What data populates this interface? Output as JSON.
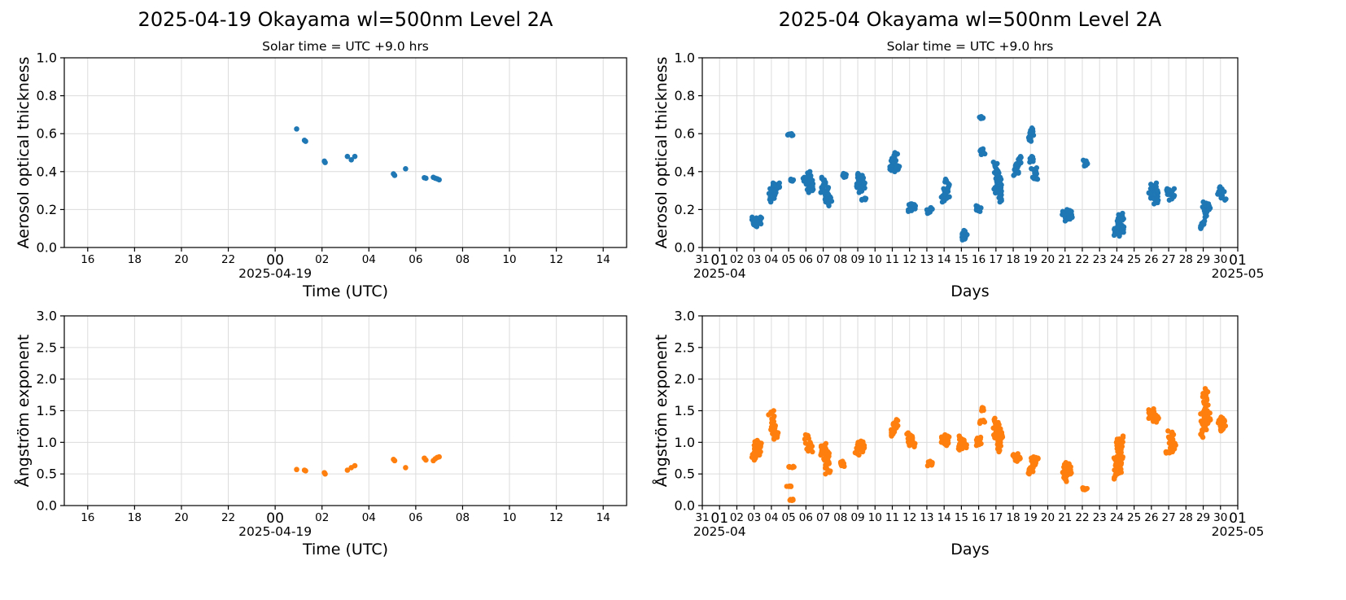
{
  "figure": {
    "colors": {
      "aod": "#1f77b4",
      "angstrom": "#ff7f0e",
      "grid": "#dcdcdc"
    }
  },
  "chart_data": [
    {
      "id": "daily_aod",
      "type": "scatter",
      "title": "2025-04-19  Okayama  wl=500nm  Level 2A",
      "subtitle": "Solar time = UTC +9.0 hrs",
      "xlabel": "Time (UTC)",
      "ylabel": "Aerosol optical thickness",
      "xaxis": {
        "kind": "time",
        "range": [
          "2025-04-18 15:00",
          "2025-04-19 15:00"
        ]
      },
      "ylim": [
        0,
        1.0
      ],
      "yticks": [
        "0.0",
        "0.2",
        "0.4",
        "0.6",
        "0.8",
        "1.0"
      ],
      "xtick_labels": [
        "16",
        "18",
        "20",
        "22",
        "00",
        "02",
        "04",
        "06",
        "08",
        "10",
        "12",
        "14"
      ],
      "xtick_secondary": "2025-04-19",
      "grid": true,
      "color": "#1f77b4",
      "points": [
        [
          "2025-04-19 00:55",
          0.625
        ],
        [
          "2025-04-19 01:15",
          0.565
        ],
        [
          "2025-04-19 01:18",
          0.56
        ],
        [
          "2025-04-19 02:06",
          0.455
        ],
        [
          "2025-04-19 02:08",
          0.448
        ],
        [
          "2025-04-19 03:05",
          0.48
        ],
        [
          "2025-04-19 03:15",
          0.462
        ],
        [
          "2025-04-19 03:24",
          0.48
        ],
        [
          "2025-04-19 05:03",
          0.388
        ],
        [
          "2025-04-19 05:06",
          0.38
        ],
        [
          "2025-04-19 05:34",
          0.415
        ],
        [
          "2025-04-19 06:22",
          0.368
        ],
        [
          "2025-04-19 06:26",
          0.365
        ],
        [
          "2025-04-19 06:45",
          0.37
        ],
        [
          "2025-04-19 06:50",
          0.365
        ],
        [
          "2025-04-19 06:55",
          0.362
        ],
        [
          "2025-04-19 07:00",
          0.357
        ]
      ]
    },
    {
      "id": "monthly_aod",
      "type": "scatter",
      "title": "2025-04  Okayama  wl=500nm  Level 2A",
      "subtitle": "Solar time = UTC +9.0 hrs",
      "xlabel": "Days",
      "ylabel": "Aerosol optical thickness",
      "xaxis": {
        "kind": "time",
        "range": [
          "2025-03-31 00:00",
          "2025-05-01 00:00"
        ]
      },
      "ylim": [
        0,
        1.0
      ],
      "yticks": [
        "0.0",
        "0.2",
        "0.4",
        "0.6",
        "0.8",
        "1.0"
      ],
      "xtick_labels": [
        "31",
        "01",
        "02",
        "03",
        "04",
        "05",
        "06",
        "07",
        "08",
        "09",
        "10",
        "11",
        "12",
        "13",
        "14",
        "15",
        "16",
        "17",
        "18",
        "19",
        "20",
        "21",
        "22",
        "23",
        "24",
        "25",
        "26",
        "27",
        "28",
        "29",
        "30",
        "01"
      ],
      "xtick_secondary": [
        "2025-04",
        "2025-05"
      ],
      "grid": true,
      "color": "#1f77b4",
      "clusters": [
        [
          "2025-04-03 00:00",
          0.12,
          0.16
        ],
        [
          "2025-04-03 03:00",
          0.11,
          0.15
        ],
        [
          "2025-04-03 07:00",
          0.12,
          0.16
        ],
        [
          "2025-04-04 00:00",
          0.24,
          0.31
        ],
        [
          "2025-04-04 04:00",
          0.27,
          0.34
        ],
        [
          "2025-04-04 08:00",
          0.31,
          0.34
        ],
        [
          "2025-04-05 02:00",
          0.59,
          0.6
        ],
        [
          "2025-04-05 05:00",
          0.35,
          0.36
        ],
        [
          "2025-04-06 00:00",
          0.35,
          0.37
        ],
        [
          "2025-04-06 04:00",
          0.29,
          0.4
        ],
        [
          "2025-04-06 07:00",
          0.3,
          0.36
        ],
        [
          "2025-04-07 00:00",
          0.29,
          0.37
        ],
        [
          "2025-04-07 04:00",
          0.24,
          0.33
        ],
        [
          "2025-04-07 08:00",
          0.22,
          0.28
        ],
        [
          "2025-04-08 04:00",
          0.37,
          0.39
        ],
        [
          "2025-04-09 00:00",
          0.31,
          0.38
        ],
        [
          "2025-04-09 03:00",
          0.29,
          0.39
        ],
        [
          "2025-04-09 06:00",
          0.3,
          0.38
        ],
        [
          "2025-04-09 08:00",
          0.25,
          0.26
        ],
        [
          "2025-04-11 00:00",
          0.4,
          0.47
        ],
        [
          "2025-04-11 04:00",
          0.41,
          0.5
        ],
        [
          "2025-04-11 06:00",
          0.41,
          0.43
        ],
        [
          "2025-04-12 02:00",
          0.19,
          0.23
        ],
        [
          "2025-04-12 05:00",
          0.2,
          0.23
        ],
        [
          "2025-04-13 04:00",
          0.18,
          0.21
        ],
        [
          "2025-04-14 00:00",
          0.24,
          0.31
        ],
        [
          "2025-04-14 04:00",
          0.26,
          0.36
        ],
        [
          "2025-04-15 02:00",
          0.04,
          0.08
        ],
        [
          "2025-04-15 04:00",
          0.05,
          0.09
        ],
        [
          "2025-04-16 00:00",
          0.19,
          0.22
        ],
        [
          "2025-04-16 04:00",
          0.68,
          0.69
        ],
        [
          "2025-04-16 06:00",
          0.49,
          0.52
        ],
        [
          "2025-04-17 00:00",
          0.3,
          0.45
        ],
        [
          "2025-04-17 02:00",
          0.28,
          0.4
        ],
        [
          "2025-04-17 04:00",
          0.29,
          0.38
        ],
        [
          "2025-04-17 06:00",
          0.24,
          0.36
        ],
        [
          "2025-04-18 04:00",
          0.38,
          0.44
        ],
        [
          "2025-04-18 07:00",
          0.43,
          0.48
        ],
        [
          "2025-04-19 01:00",
          0.56,
          0.63
        ],
        [
          "2025-04-19 03:00",
          0.45,
          0.48
        ],
        [
          "2025-04-19 05:00",
          0.38,
          0.42
        ],
        [
          "2025-04-19 07:00",
          0.36,
          0.37
        ],
        [
          "2025-04-22 04:00",
          0.43,
          0.46
        ],
        [
          "2025-04-21 00:00",
          0.14,
          0.19
        ],
        [
          "2025-04-21 03:00",
          0.15,
          0.2
        ],
        [
          "2025-04-21 06:00",
          0.15,
          0.19
        ],
        [
          "2025-04-24 00:00",
          0.06,
          0.1
        ],
        [
          "2025-04-24 03:00",
          0.07,
          0.16
        ],
        [
          "2025-04-24 06:00",
          0.08,
          0.18
        ],
        [
          "2025-04-26 00:00",
          0.26,
          0.31
        ],
        [
          "2025-04-26 03:00",
          0.26,
          0.34
        ],
        [
          "2025-04-26 06:00",
          0.23,
          0.3
        ],
        [
          "2025-04-27 00:00",
          0.28,
          0.31
        ],
        [
          "2025-04-27 04:00",
          0.25,
          0.31
        ],
        [
          "2025-04-29 00:00",
          0.1,
          0.14
        ],
        [
          "2025-04-29 03:00",
          0.16,
          0.24
        ],
        [
          "2025-04-29 06:00",
          0.2,
          0.23
        ],
        [
          "2025-04-30 00:00",
          0.27,
          0.32
        ],
        [
          "2025-04-30 04:00",
          0.25,
          0.3
        ]
      ]
    },
    {
      "id": "daily_angstrom",
      "type": "scatter",
      "title": "",
      "subtitle": "",
      "xlabel": "Time (UTC)",
      "ylabel": "Ångström exponent",
      "xaxis": {
        "kind": "time",
        "range": [
          "2025-04-18 15:00",
          "2025-04-19 15:00"
        ]
      },
      "ylim": [
        0,
        3.0
      ],
      "yticks": [
        "0.0",
        "0.5",
        "1.0",
        "1.5",
        "2.0",
        "2.5",
        "3.0"
      ],
      "xtick_labels": [
        "16",
        "18",
        "20",
        "22",
        "00",
        "02",
        "04",
        "06",
        "08",
        "10",
        "12",
        "14"
      ],
      "xtick_secondary": "2025-04-19",
      "grid": true,
      "color": "#ff7f0e",
      "points": [
        [
          "2025-04-19 00:55",
          0.57
        ],
        [
          "2025-04-19 01:15",
          0.56
        ],
        [
          "2025-04-19 01:18",
          0.55
        ],
        [
          "2025-04-19 02:06",
          0.52
        ],
        [
          "2025-04-19 02:08",
          0.5
        ],
        [
          "2025-04-19 03:05",
          0.56
        ],
        [
          "2025-04-19 03:15",
          0.6
        ],
        [
          "2025-04-19 03:24",
          0.63
        ],
        [
          "2025-04-19 05:03",
          0.73
        ],
        [
          "2025-04-19 05:06",
          0.71
        ],
        [
          "2025-04-19 05:34",
          0.6
        ],
        [
          "2025-04-19 06:22",
          0.75
        ],
        [
          "2025-04-19 06:26",
          0.72
        ],
        [
          "2025-04-19 06:45",
          0.71
        ],
        [
          "2025-04-19 06:50",
          0.74
        ],
        [
          "2025-04-19 06:55",
          0.76
        ],
        [
          "2025-04-19 07:00",
          0.77
        ]
      ]
    },
    {
      "id": "monthly_angstrom",
      "type": "scatter",
      "title": "",
      "subtitle": "",
      "xlabel": "Days",
      "ylabel": "Ångström exponent",
      "xaxis": {
        "kind": "time",
        "range": [
          "2025-03-31 00:00",
          "2025-05-01 00:00"
        ]
      },
      "ylim": [
        0,
        3.0
      ],
      "yticks": [
        "0.0",
        "0.5",
        "1.0",
        "1.5",
        "2.0",
        "2.5",
        "3.0"
      ],
      "xtick_labels": [
        "31",
        "01",
        "02",
        "03",
        "04",
        "05",
        "06",
        "07",
        "08",
        "09",
        "10",
        "11",
        "12",
        "13",
        "14",
        "15",
        "16",
        "17",
        "18",
        "19",
        "20",
        "21",
        "22",
        "23",
        "24",
        "25",
        "26",
        "27",
        "28",
        "29",
        "30",
        "01"
      ],
      "xtick_secondary": [
        "2025-04",
        "2025-05"
      ],
      "grid": true,
      "color": "#ff7f0e",
      "clusters": [
        [
          "2025-04-03 00:00",
          0.72,
          0.85
        ],
        [
          "2025-04-03 04:00",
          0.8,
          1.03
        ],
        [
          "2025-04-03 07:00",
          0.85,
          1.0
        ],
        [
          "2025-04-04 00:00",
          1.2,
          1.5
        ],
        [
          "2025-04-04 03:00",
          1.1,
          1.3
        ],
        [
          "2025-04-04 06:00",
          1.05,
          1.18
        ],
        [
          "2025-04-05 00:00",
          0.3,
          0.31
        ],
        [
          "2025-04-05 04:00",
          0.6,
          0.62
        ],
        [
          "2025-04-05 05:00",
          0.08,
          0.1
        ],
        [
          "2025-04-06 00:00",
          1.05,
          1.12
        ],
        [
          "2025-04-06 03:00",
          0.88,
          1.0
        ],
        [
          "2025-04-06 06:00",
          0.85,
          0.95
        ],
        [
          "2025-04-07 00:00",
          0.8,
          0.98
        ],
        [
          "2025-04-07 03:00",
          0.7,
          0.95
        ],
        [
          "2025-04-07 06:00",
          0.5,
          0.85
        ],
        [
          "2025-04-08 04:00",
          0.62,
          0.7
        ],
        [
          "2025-04-09 00:00",
          0.8,
          0.98
        ],
        [
          "2025-04-09 03:00",
          0.85,
          1.0
        ],
        [
          "2025-04-09 06:00",
          0.9,
          1.02
        ],
        [
          "2025-04-11 00:00",
          1.1,
          1.25
        ],
        [
          "2025-04-11 04:00",
          1.2,
          1.36
        ],
        [
          "2025-04-12 00:00",
          0.95,
          1.15
        ],
        [
          "2025-04-12 04:00",
          0.93,
          1.1
        ],
        [
          "2025-04-13 04:00",
          0.63,
          0.7
        ],
        [
          "2025-04-14 00:00",
          0.95,
          1.12
        ],
        [
          "2025-04-14 04:00",
          0.97,
          1.1
        ],
        [
          "2025-04-15 00:00",
          0.88,
          1.1
        ],
        [
          "2025-04-15 04:00",
          0.9,
          1.05
        ],
        [
          "2025-04-16 00:00",
          0.95,
          1.08
        ],
        [
          "2025-04-16 03:00",
          1.5,
          1.55
        ],
        [
          "2025-04-16 05:00",
          1.3,
          1.35
        ],
        [
          "2025-04-17 00:00",
          1.05,
          1.38
        ],
        [
          "2025-04-17 03:00",
          1.0,
          1.3
        ],
        [
          "2025-04-17 06:00",
          0.85,
          1.2
        ],
        [
          "2025-04-18 03:00",
          0.7,
          0.82
        ],
        [
          "2025-04-18 06:00",
          0.72,
          0.78
        ],
        [
          "2025-04-19 01:00",
          0.5,
          0.6
        ],
        [
          "2025-04-19 04:00",
          0.6,
          0.75
        ],
        [
          "2025-04-19 07:00",
          0.7,
          0.77
        ],
        [
          "2025-04-21 00:00",
          0.38,
          0.67
        ],
        [
          "2025-04-21 03:00",
          0.45,
          0.68
        ],
        [
          "2025-04-21 06:00",
          0.5,
          0.66
        ],
        [
          "2025-04-22 04:00",
          0.25,
          0.28
        ],
        [
          "2025-04-24 00:00",
          0.42,
          0.8
        ],
        [
          "2025-04-24 03:00",
          0.5,
          1.05
        ],
        [
          "2025-04-24 06:00",
          0.65,
          1.1
        ],
        [
          "2025-04-26 00:00",
          1.38,
          1.53
        ],
        [
          "2025-04-26 03:00",
          1.35,
          1.5
        ],
        [
          "2025-04-26 06:00",
          1.32,
          1.42
        ],
        [
          "2025-04-27 00:00",
          0.83,
          0.85
        ],
        [
          "2025-04-27 03:00",
          0.95,
          1.18
        ],
        [
          "2025-04-27 06:00",
          0.85,
          1.0
        ],
        [
          "2025-04-29 00:00",
          1.08,
          1.45
        ],
        [
          "2025-04-29 03:00",
          1.2,
          1.85
        ],
        [
          "2025-04-29 06:00",
          1.3,
          1.5
        ],
        [
          "2025-04-30 00:00",
          1.18,
          1.4
        ],
        [
          "2025-04-30 04:00",
          1.2,
          1.35
        ]
      ]
    }
  ]
}
